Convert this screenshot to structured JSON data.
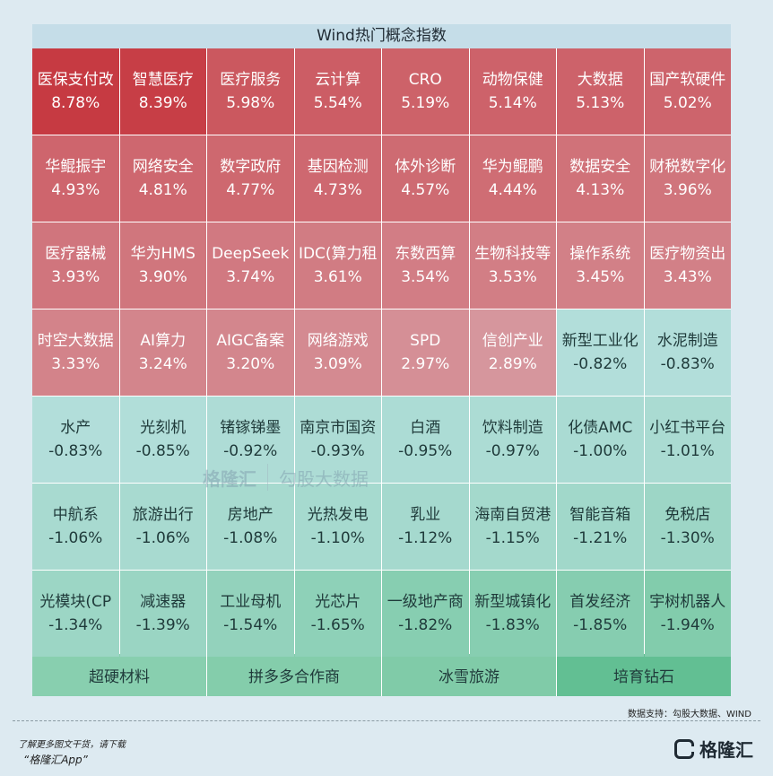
{
  "title": "Wind热门概念指数",
  "chart_data": {
    "type": "heatmap",
    "title": "Wind热门概念指数",
    "items": [
      {
        "name": "医保支付改",
        "value": "8.78%"
      },
      {
        "name": "智慧医疗",
        "value": "8.39%"
      },
      {
        "name": "医疗服务",
        "value": "5.98%"
      },
      {
        "name": "云计算",
        "value": "5.54%"
      },
      {
        "name": "CRO",
        "value": "5.19%"
      },
      {
        "name": "动物保健",
        "value": "5.14%"
      },
      {
        "name": "大数据",
        "value": "5.13%"
      },
      {
        "name": "国产软硬件",
        "value": "5.02%"
      },
      {
        "name": "华鲲振宇",
        "value": "4.93%"
      },
      {
        "name": "网络安全",
        "value": "4.81%"
      },
      {
        "name": "数字政府",
        "value": "4.77%"
      },
      {
        "name": "基因检测",
        "value": "4.73%"
      },
      {
        "name": "体外诊断",
        "value": "4.57%"
      },
      {
        "name": "华为鲲鹏",
        "value": "4.44%"
      },
      {
        "name": "数据安全",
        "value": "4.13%"
      },
      {
        "name": "财税数字化",
        "value": "3.96%"
      },
      {
        "name": "医疗器械",
        "value": "3.93%"
      },
      {
        "name": "华为HMS",
        "value": "3.90%"
      },
      {
        "name": "DeepSeek",
        "value": "3.74%"
      },
      {
        "name": "IDC(算力租",
        "value": "3.61%"
      },
      {
        "name": "东数西算",
        "value": "3.54%"
      },
      {
        "name": "生物科技等",
        "value": "3.53%"
      },
      {
        "name": "操作系统",
        "value": "3.45%"
      },
      {
        "name": "医疗物资出",
        "value": "3.43%"
      },
      {
        "name": "时空大数据",
        "value": "3.33%"
      },
      {
        "name": "AI算力",
        "value": "3.24%"
      },
      {
        "name": "AIGC备案",
        "value": "3.20%"
      },
      {
        "name": "网络游戏",
        "value": "3.09%"
      },
      {
        "name": "SPD",
        "value": "2.97%"
      },
      {
        "name": "信创产业",
        "value": "2.89%"
      },
      {
        "name": "新型工业化",
        "value": "-0.82%"
      },
      {
        "name": "水泥制造",
        "value": "-0.83%"
      },
      {
        "name": "水产",
        "value": "-0.83%"
      },
      {
        "name": "光刻机",
        "value": "-0.85%"
      },
      {
        "name": "锗镓锑墨",
        "value": "-0.92%"
      },
      {
        "name": "南京市国资",
        "value": "-0.93%"
      },
      {
        "name": "白酒",
        "value": "-0.95%"
      },
      {
        "name": "饮料制造",
        "value": "-0.97%"
      },
      {
        "name": "化债AMC",
        "value": "-1.00%"
      },
      {
        "name": "小红书平台",
        "value": "-1.01%"
      },
      {
        "name": "中航系",
        "value": "-1.06%"
      },
      {
        "name": "旅游出行",
        "value": "-1.06%"
      },
      {
        "name": "房地产",
        "value": "-1.08%"
      },
      {
        "name": "光热发电",
        "value": "-1.10%"
      },
      {
        "name": "乳业",
        "value": "-1.12%"
      },
      {
        "name": "海南自贸港",
        "value": "-1.15%"
      },
      {
        "name": "智能音箱",
        "value": "-1.21%"
      },
      {
        "name": "免税店",
        "value": "-1.30%"
      },
      {
        "name": "光模块(CP",
        "value": "-1.34%"
      },
      {
        "name": "减速器",
        "value": "-1.39%"
      },
      {
        "name": "工业母机",
        "value": "-1.54%"
      },
      {
        "name": "光芯片",
        "value": "-1.65%"
      },
      {
        "name": "一级地产商",
        "value": "-1.82%"
      },
      {
        "name": "新型城镇化",
        "value": "-1.83%"
      },
      {
        "name": "首发经济",
        "value": "-1.85%"
      },
      {
        "name": "宇树机器人",
        "value": "-1.94%"
      }
    ],
    "bottom_items": [
      "超硬材料",
      "拼多多合作商",
      "冰雪旅游",
      "培育钻石"
    ]
  },
  "watermark": {
    "logo": "格隆汇",
    "text": "勾股大数据"
  },
  "source": "数据支持：勾股大数据、WIND",
  "promo": {
    "line1": "了解更多图文干货，请下载",
    "line2": "“格隆汇App”"
  },
  "brand": "格隆汇"
}
